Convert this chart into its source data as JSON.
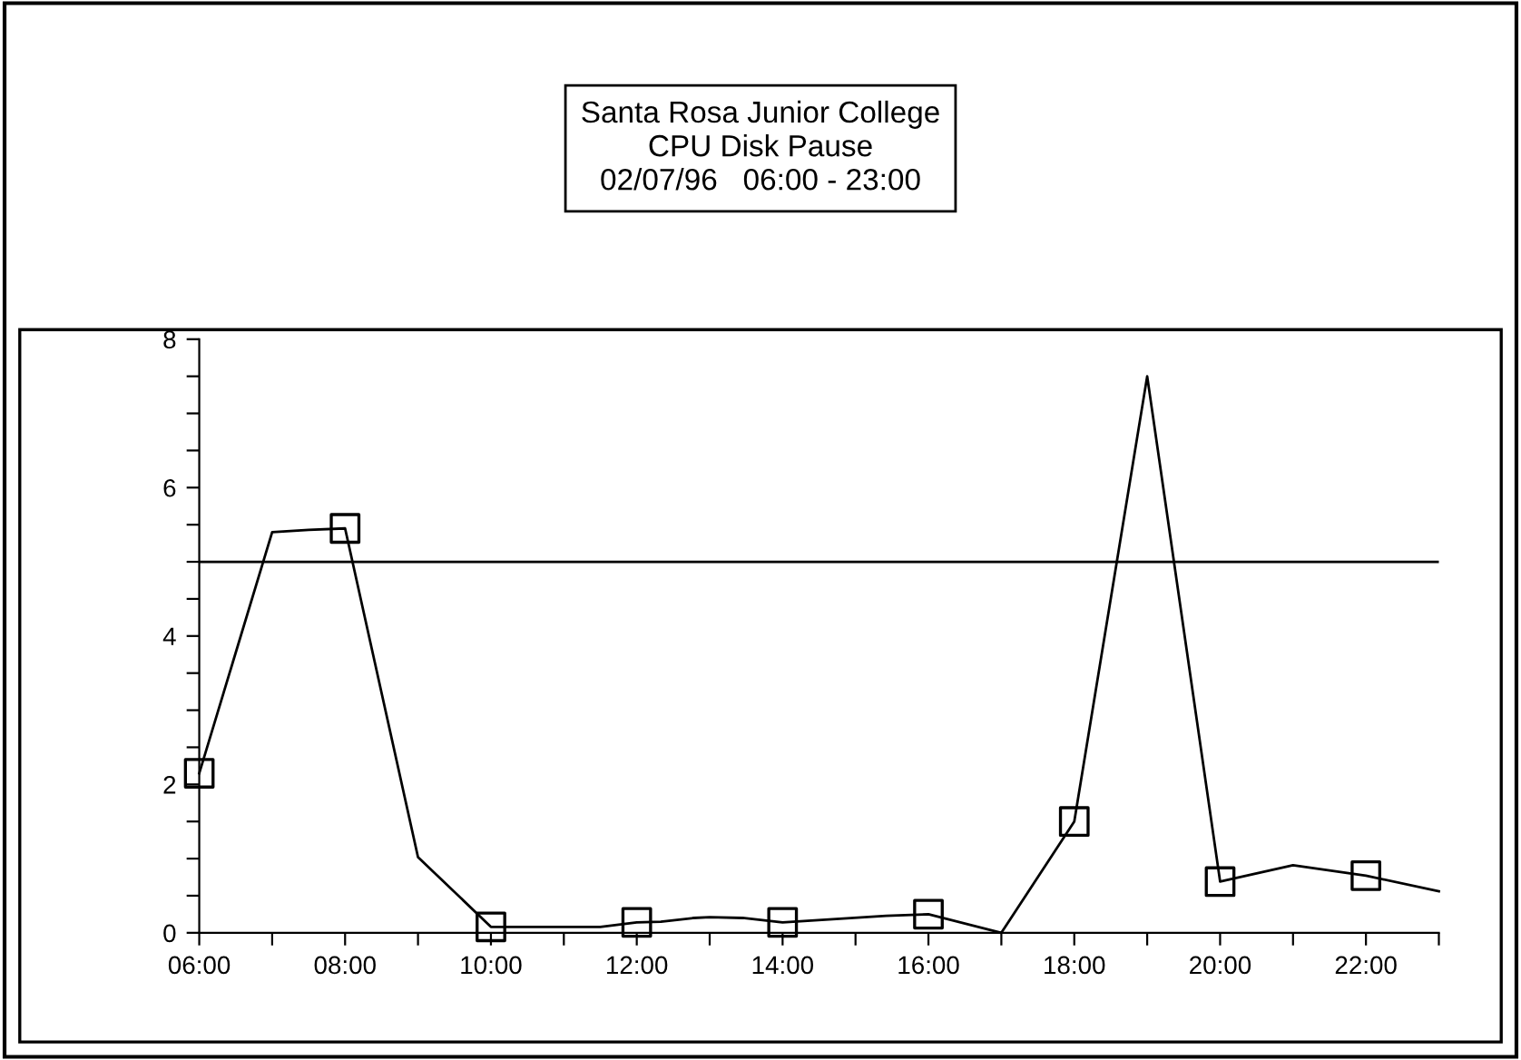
{
  "chart_data": {
    "type": "line",
    "title": "Santa Rosa Junior College\nCPU Disk Pause\n02/07/96   06:00 - 23:00",
    "series": [
      {
        "color": "#000000",
        "marker": "none",
        "x": [
          6,
          7,
          7.5,
          8,
          9,
          10,
          11.5,
          12,
          12.33,
          12.78,
          13,
          13.45,
          14,
          15.42,
          16,
          17,
          18,
          19,
          20,
          21,
          22,
          23
        ],
        "values": [
          2.15,
          5.4,
          5.43,
          5.45,
          1.02,
          0.08,
          0.08,
          0.14,
          0.15,
          0.2,
          0.21,
          0.2,
          0.14,
          0.23,
          0.25,
          0,
          1.5,
          7.5,
          0.69,
          0.91,
          0.77,
          0.56
        ]
      },
      {
        "type": "scatter",
        "color": "#000000",
        "marker": "square",
        "x": [
          6,
          8,
          10,
          12,
          14,
          16,
          18,
          20,
          22
        ],
        "values": [
          2.15,
          5.45,
          0.08,
          0.14,
          0.14,
          0.25,
          1.5,
          0.69,
          0.77
        ]
      }
    ],
    "xlim": [
      6,
      23
    ],
    "ylim": [
      0,
      8
    ],
    "xticks": [
      {
        "value": 6,
        "label": "06:00"
      },
      {
        "value": 7,
        "label": null
      },
      {
        "value": 8,
        "label": "08:00"
      },
      {
        "value": 9,
        "label": null
      },
      {
        "value": 10,
        "label": "10:00"
      },
      {
        "value": 11,
        "label": null
      },
      {
        "value": 12,
        "label": "12:00"
      },
      {
        "value": 13,
        "label": null
      },
      {
        "value": 14,
        "label": "14:00"
      },
      {
        "value": 15,
        "label": null
      },
      {
        "value": 16,
        "label": "16:00"
      },
      {
        "value": 17,
        "label": null
      },
      {
        "value": 18,
        "label": "18:00"
      },
      {
        "value": 19,
        "label": null
      },
      {
        "value": 20,
        "label": "20:00"
      },
      {
        "value": 21,
        "label": null
      },
      {
        "value": 22,
        "label": "22:00"
      },
      {
        "value": 23,
        "label": null
      }
    ],
    "yticks": [
      0,
      {
        "value": 0.5,
        "label": null
      },
      {
        "value": 1,
        "label": null
      },
      {
        "value": 1.5,
        "label": null
      },
      2,
      {
        "value": 2.5,
        "label": null
      },
      {
        "value": 3,
        "label": null
      },
      {
        "value": 3.5,
        "label": null
      },
      4,
      {
        "value": 4.5,
        "label": null
      },
      {
        "value": 5,
        "label": null
      },
      {
        "value": 5.5,
        "label": null
      },
      6,
      {
        "value": 6.5,
        "label": null
      },
      {
        "value": 7,
        "label": null
      },
      {
        "value": 7.5,
        "label": null
      },
      8
    ],
    "ref_lines": [
      {
        "axis": "y",
        "value": 5,
        "color": "#000000",
        "line_style": "solid"
      }
    ],
    "grid": false,
    "legend": false
  }
}
